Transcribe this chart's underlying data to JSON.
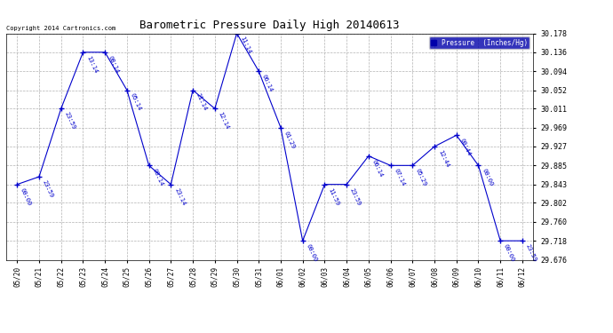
{
  "title": "Barometric Pressure Daily High 20140613",
  "copyright": "Copyright 2014 Cartronics.com",
  "legend_label": "Pressure  (Inches/Hg)",
  "background_color": "#ffffff",
  "plot_bg_color": "#ffffff",
  "line_color": "#0000cc",
  "text_color": "#0000cc",
  "grid_color": "#aaaaaa",
  "ylim": [
    29.676,
    30.178
  ],
  "yticks": [
    29.676,
    29.718,
    29.76,
    29.802,
    29.843,
    29.885,
    29.927,
    29.969,
    30.011,
    30.052,
    30.094,
    30.136,
    30.178
  ],
  "points": [
    {
      "x": 0,
      "date": "05/20",
      "time": "00:00",
      "value": 29.843
    },
    {
      "x": 1,
      "date": "05/21",
      "time": "23:59",
      "value": 29.86
    },
    {
      "x": 2,
      "date": "05/22",
      "time": "23:59",
      "value": 30.011
    },
    {
      "x": 3,
      "date": "05/23",
      "time": "13:14",
      "value": 30.136
    },
    {
      "x": 4,
      "date": "05/24",
      "time": "08:14",
      "value": 30.136
    },
    {
      "x": 5,
      "date": "05/25",
      "time": "05:14",
      "value": 30.052
    },
    {
      "x": 6,
      "date": "05/26",
      "time": "00:14",
      "value": 29.885
    },
    {
      "x": 7,
      "date": "05/27",
      "time": "23:14",
      "value": 29.843
    },
    {
      "x": 8,
      "date": "05/28",
      "time": "21:14",
      "value": 30.052
    },
    {
      "x": 9,
      "date": "05/29",
      "time": "12:14",
      "value": 30.011
    },
    {
      "x": 10,
      "date": "05/30",
      "time": "11:14",
      "value": 30.178
    },
    {
      "x": 11,
      "date": "05/31",
      "time": "06:14",
      "value": 30.094
    },
    {
      "x": 12,
      "date": "06/01",
      "time": "01:29",
      "value": 29.969
    },
    {
      "x": 13,
      "date": "06/02",
      "time": "00:00",
      "value": 29.718
    },
    {
      "x": 14,
      "date": "06/03",
      "time": "11:59",
      "value": 29.843
    },
    {
      "x": 15,
      "date": "06/04",
      "time": "23:59",
      "value": 29.843
    },
    {
      "x": 16,
      "date": "06/05",
      "time": "06:14",
      "value": 29.906
    },
    {
      "x": 17,
      "date": "06/06",
      "time": "07:14",
      "value": 29.885
    },
    {
      "x": 18,
      "date": "06/07",
      "time": "05:29",
      "value": 29.885
    },
    {
      "x": 19,
      "date": "06/08",
      "time": "12:44",
      "value": 29.927
    },
    {
      "x": 20,
      "date": "06/09",
      "time": "00:44",
      "value": 29.952
    },
    {
      "x": 21,
      "date": "06/10",
      "time": "00:00",
      "value": 29.885
    },
    {
      "x": 22,
      "date": "06/11",
      "time": "00:00",
      "value": 29.718
    },
    {
      "x": 23,
      "date": "06/12",
      "time": "23:59",
      "value": 29.718
    }
  ],
  "xlabels": [
    "05/20",
    "05/21",
    "05/22",
    "05/23",
    "05/24",
    "05/25",
    "05/26",
    "05/27",
    "05/28",
    "05/29",
    "05/30",
    "05/31",
    "06/01",
    "06/02",
    "06/03",
    "06/04",
    "06/05",
    "06/06",
    "06/07",
    "06/08",
    "06/09",
    "06/10",
    "06/11",
    "06/12"
  ]
}
